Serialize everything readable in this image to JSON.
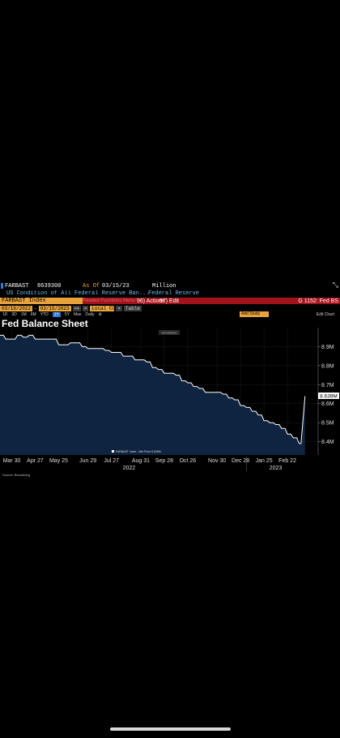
{
  "header": {
    "ticker": "FARBAST",
    "value": "8639300",
    "as_of_label": "As Of",
    "as_of_date": "03/15/23",
    "unit": "Million",
    "zoom_icon": "expand-icon",
    "description": "US Condition of All Federal Reserve Ban...",
    "source_name": "Federal Reserve"
  },
  "toolbar": {
    "security": "FARBAST Index",
    "ghost_text": "Related Functions Menu",
    "actions_label": "96) Actions",
    "edit_label": "97) Edit",
    "right_label": "G 1152: Fed BS",
    "start_date": "03/16/2022",
    "end_date": "03/15/2023",
    "currency": "Local CCY",
    "table_label": "Table",
    "periods": [
      "1D",
      "3D",
      "1M",
      "6M",
      "YTD",
      "1Y",
      "5Y",
      "Max"
    ],
    "selected_period": "1Y",
    "frequency": "Daily",
    "yellow_label": "Add Study",
    "edit_chart": "Edit Chart"
  },
  "colors": {
    "accent_orange": "#e8a33d",
    "bar_red": "#a3131c",
    "area_fill": "#0f2440",
    "line": "#ffffff"
  },
  "chart_title": "Fed Balance Sheet",
  "source": "Source: Bloomberg",
  "chart_data": {
    "type": "area",
    "title": "Fed Balance Sheet",
    "legend": "FARBAST Index - Mid Price 8.639M",
    "last_value_label": "8.639M",
    "tooltip_label": "Annotations",
    "x_ticks": [
      "Mar 30",
      "Apr 27",
      "May 25",
      "Jun 29",
      "Jul 27",
      "Aug 31",
      "Sep 28",
      "Oct 26",
      "Nov 30",
      "Dec 28",
      "Jan 25",
      "Feb 22"
    ],
    "year_labels": [
      "2022",
      "2023"
    ],
    "y_ticks": [
      "8.4M",
      "8.5M",
      "8.6M",
      "8.7M",
      "8.8M",
      "8.9M"
    ],
    "y_unit": "Million",
    "ylim": [
      8.33,
      9.0
    ],
    "grid": true,
    "x": [
      "2022-03-16",
      "2022-03-23",
      "2022-03-30",
      "2022-04-06",
      "2022-04-13",
      "2022-04-20",
      "2022-04-27",
      "2022-05-04",
      "2022-05-11",
      "2022-05-18",
      "2022-05-25",
      "2022-06-01",
      "2022-06-08",
      "2022-06-15",
      "2022-06-22",
      "2022-06-29",
      "2022-07-06",
      "2022-07-13",
      "2022-07-20",
      "2022-07-27",
      "2022-08-03",
      "2022-08-10",
      "2022-08-17",
      "2022-08-24",
      "2022-08-31",
      "2022-09-07",
      "2022-09-14",
      "2022-09-21",
      "2022-09-28",
      "2022-10-05",
      "2022-10-12",
      "2022-10-19",
      "2022-10-26",
      "2022-11-02",
      "2022-11-09",
      "2022-11-16",
      "2022-11-23",
      "2022-11-30",
      "2022-12-07",
      "2022-12-14",
      "2022-12-21",
      "2022-12-28",
      "2023-01-04",
      "2023-01-11",
      "2023-01-18",
      "2023-01-25",
      "2023-02-01",
      "2023-02-08",
      "2023-02-15",
      "2023-02-22",
      "2023-03-01",
      "2023-03-08",
      "2023-03-15"
    ],
    "values": [
      8.96,
      8.94,
      8.94,
      8.96,
      8.95,
      8.96,
      8.94,
      8.94,
      8.94,
      8.94,
      8.91,
      8.91,
      8.92,
      8.92,
      8.9,
      8.89,
      8.89,
      8.89,
      8.88,
      8.87,
      8.87,
      8.85,
      8.85,
      8.83,
      8.83,
      8.82,
      8.79,
      8.78,
      8.76,
      8.76,
      8.75,
      8.72,
      8.71,
      8.69,
      8.68,
      8.66,
      8.66,
      8.66,
      8.65,
      8.63,
      8.62,
      8.59,
      8.58,
      8.56,
      8.54,
      8.51,
      8.5,
      8.49,
      8.47,
      8.44,
      8.42,
      8.39,
      8.639
    ]
  }
}
